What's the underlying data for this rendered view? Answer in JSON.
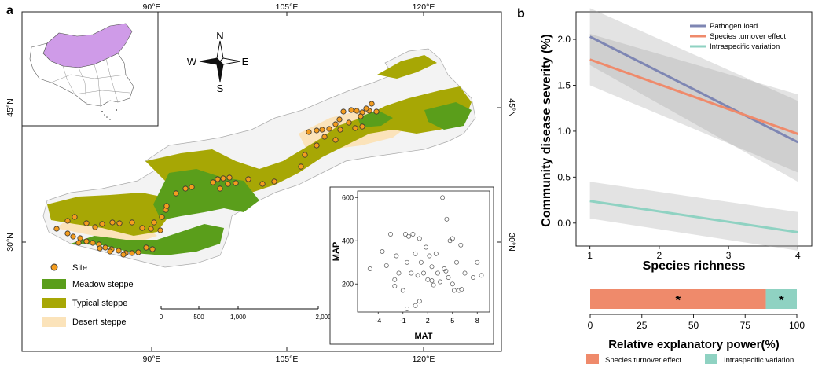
{
  "panel_a": {
    "label": "a",
    "lon_ticks": [
      "90°E",
      "105°E",
      "120°E"
    ],
    "lat_ticks": [
      "45°N",
      "30°N"
    ],
    "compass": {
      "n": "N",
      "s": "S",
      "e": "E",
      "w": "W"
    },
    "legend": [
      {
        "label": "Site",
        "color": "#f39c1f"
      },
      {
        "label": "Meadow steppe",
        "color": "#5a9e1b"
      },
      {
        "label": "Typical steppe",
        "color": "#a7a705"
      },
      {
        "label": "Desert steppe",
        "color": "#fbe3ba"
      }
    ],
    "scale_bar": {
      "ticks": [
        "0",
        "500",
        "1,000",
        "2,000 km"
      ]
    },
    "inset_colors": {
      "highlight": "#cf9be8",
      "outline": "#555555"
    },
    "climate_inset": {
      "xlabel": "MAT",
      "ylabel": "MAP",
      "xticks": [
        -4,
        -1,
        2,
        5,
        8
      ],
      "yticks": [
        200,
        400,
        600
      ],
      "xlim": [
        -6.5,
        9.5
      ],
      "ylim": [
        70,
        630
      ],
      "points": [
        [
          -5.0,
          270
        ],
        [
          -3.5,
          350
        ],
        [
          -3.0,
          285
        ],
        [
          -2.5,
          430
        ],
        [
          -2.0,
          220
        ],
        [
          -1.8,
          330
        ],
        [
          -1.5,
          250
        ],
        [
          -1.0,
          170
        ],
        [
          -0.7,
          430
        ],
        [
          -0.5,
          300
        ],
        [
          -0.3,
          420
        ],
        [
          0.0,
          250
        ],
        [
          0.2,
          430
        ],
        [
          0.5,
          340
        ],
        [
          0.8,
          240
        ],
        [
          1.0,
          410
        ],
        [
          1.2,
          300
        ],
        [
          1.5,
          250
        ],
        [
          1.8,
          370
        ],
        [
          2.0,
          220
        ],
        [
          2.2,
          330
        ],
        [
          2.5,
          280
        ],
        [
          2.7,
          195
        ],
        [
          3.0,
          340
        ],
        [
          3.2,
          250
        ],
        [
          3.5,
          210
        ],
        [
          3.8,
          600
        ],
        [
          4.0,
          270
        ],
        [
          4.2,
          260
        ],
        [
          4.5,
          230
        ],
        [
          4.7,
          400
        ],
        [
          5.0,
          200
        ],
        [
          5.2,
          170
        ],
        [
          5.5,
          300
        ],
        [
          5.8,
          170
        ],
        [
          6.0,
          380
        ],
        [
          6.5,
          250
        ],
        [
          7.5,
          230
        ],
        [
          8.0,
          300
        ],
        [
          8.5,
          240
        ],
        [
          -2.0,
          190
        ],
        [
          0.5,
          100
        ],
        [
          1.0,
          120
        ],
        [
          -0.5,
          85
        ],
        [
          4.3,
          500
        ],
        [
          5.0,
          410
        ],
        [
          6.1,
          175
        ],
        [
          2.5,
          215
        ]
      ]
    }
  },
  "panel_b": {
    "label": "b",
    "chart_data": {
      "type": "line",
      "ylabel": "Community disease severity (%)",
      "xlabel": "Species richness",
      "xlim": [
        0.8,
        4.2
      ],
      "ylim": [
        -0.25,
        2.3
      ],
      "xticks": [
        1,
        2,
        3,
        4
      ],
      "yticks": [
        "0.0",
        "0.5",
        "1.0",
        "1.5",
        "2.0"
      ],
      "series": [
        {
          "name": "Pathogen load",
          "color": "#7e86b3",
          "x": [
            1,
            4
          ],
          "values": [
            2.03,
            0.88
          ],
          "ci_lower": [
            1.72,
            0.45
          ],
          "ci_upper": [
            2.34,
            1.33
          ]
        },
        {
          "name": "Species turnover effect",
          "color": "#ef8a6b",
          "x": [
            1,
            4
          ],
          "values": [
            1.78,
            0.97
          ],
          "ci_lower": [
            1.5,
            0.55
          ],
          "ci_upper": [
            2.06,
            1.4
          ]
        },
        {
          "name": "Intraspecific variation",
          "color": "#8fd2c2",
          "x": [
            1,
            4
          ],
          "values": [
            0.24,
            -0.1
          ],
          "ci_lower": [
            0.05,
            -0.3
          ],
          "ci_upper": [
            0.45,
            0.12
          ]
        }
      ]
    },
    "explanatory_bar": {
      "xlabel": "Relative explanatory power(%)",
      "xticks": [
        0,
        25,
        50,
        75,
        100
      ],
      "segments": [
        {
          "name": "Species turnover effect",
          "value": 85,
          "color": "#ef8a6b",
          "mark": "*"
        },
        {
          "name": "Intraspecific variation",
          "value": 15,
          "color": "#8fd2c2",
          "mark": "*"
        }
      ]
    }
  }
}
